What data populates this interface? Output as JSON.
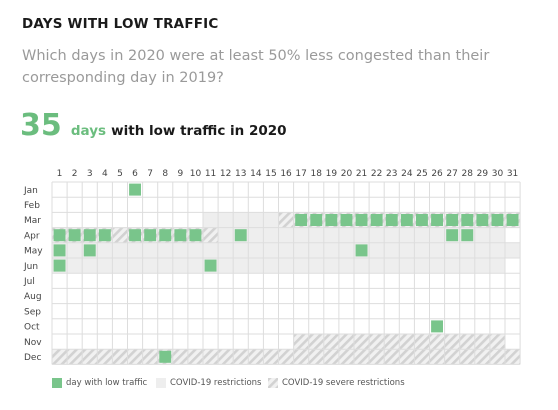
{
  "header": {
    "title": "DAYS WITH LOW TRAFFIC",
    "subtitle": "Which days in 2020 were at least 50% less congested than their corresponding day in 2019?"
  },
  "headline": {
    "count": "35",
    "unit": "days",
    "rest": "with low traffic in 2020"
  },
  "colors": {
    "low_traffic": "#79c58b",
    "restriction": "#eeeeee",
    "severe_stripe": "#d2d2d2",
    "grid": "#dddddd"
  },
  "chart_data": {
    "type": "heatmap",
    "title": "DAYS WITH LOW TRAFFIC",
    "x": [
      "1",
      "2",
      "3",
      "4",
      "5",
      "6",
      "7",
      "8",
      "9",
      "10",
      "11",
      "12",
      "13",
      "14",
      "15",
      "16",
      "17",
      "18",
      "19",
      "20",
      "21",
      "22",
      "23",
      "24",
      "25",
      "26",
      "27",
      "28",
      "29",
      "30",
      "31"
    ],
    "y": [
      "Jan",
      "Feb",
      "Mar",
      "Apr",
      "May",
      "Jun",
      "Jul",
      "Aug",
      "Sep",
      "Oct",
      "Nov",
      "Dec"
    ],
    "low_traffic_days": {
      "Jan": [
        6
      ],
      "Mar": [
        17,
        18,
        19,
        20,
        21,
        22,
        23,
        24,
        25,
        26,
        27,
        28,
        29,
        30,
        31
      ],
      "Apr": [
        1,
        2,
        3,
        4,
        6,
        7,
        8,
        9,
        10,
        13,
        27,
        28
      ],
      "May": [
        1,
        3,
        21
      ],
      "Jun": [
        1,
        11
      ],
      "Oct": [
        26
      ],
      "Dec": [
        8
      ]
    },
    "covid_restrictions": {
      "Mar": [
        11,
        12,
        13,
        14,
        15
      ],
      "Apr": [
        12,
        13,
        14,
        15,
        16,
        17,
        18,
        19,
        20,
        21,
        22,
        23,
        24,
        25,
        26,
        27,
        28,
        29,
        30
      ],
      "May": [
        1,
        2,
        3,
        4,
        5,
        6,
        7,
        8,
        9,
        10,
        11,
        12,
        13,
        14,
        15,
        16,
        17,
        18,
        19,
        20,
        21,
        22,
        23,
        24,
        25,
        26,
        27,
        28,
        29,
        30,
        31
      ],
      "Jun": [
        1,
        2,
        3,
        4,
        5,
        6,
        7,
        8,
        9,
        10,
        11,
        12,
        13,
        14,
        15,
        16,
        17,
        18,
        19,
        20,
        21,
        22,
        23,
        24,
        25,
        26,
        27,
        28,
        29,
        30
      ]
    },
    "covid_severe_restrictions": {
      "Mar": [
        16,
        17,
        18,
        19,
        20,
        21,
        22,
        23,
        24,
        25,
        26,
        27,
        28,
        29,
        30,
        31
      ],
      "Apr": [
        1,
        2,
        3,
        4,
        5,
        6,
        7,
        8,
        9,
        10,
        11
      ],
      "Nov": [
        17,
        18,
        19,
        20,
        21,
        22,
        23,
        24,
        25,
        26,
        27,
        28,
        29,
        30
      ],
      "Dec": [
        1,
        2,
        3,
        4,
        5,
        6,
        7,
        8,
        9,
        10,
        11,
        12,
        13,
        14,
        15,
        16,
        17,
        18,
        19,
        20,
        21,
        22,
        23,
        24,
        25,
        26,
        27,
        28,
        29,
        30,
        31
      ]
    },
    "month_lengths": [
      31,
      29,
      31,
      30,
      31,
      30,
      31,
      31,
      30,
      31,
      30,
      31
    ]
  },
  "legend": {
    "low_traffic": "day with low traffic",
    "restrictions": "COVID-19 restrictions",
    "severe": "COVID-19 severe restrictions"
  }
}
